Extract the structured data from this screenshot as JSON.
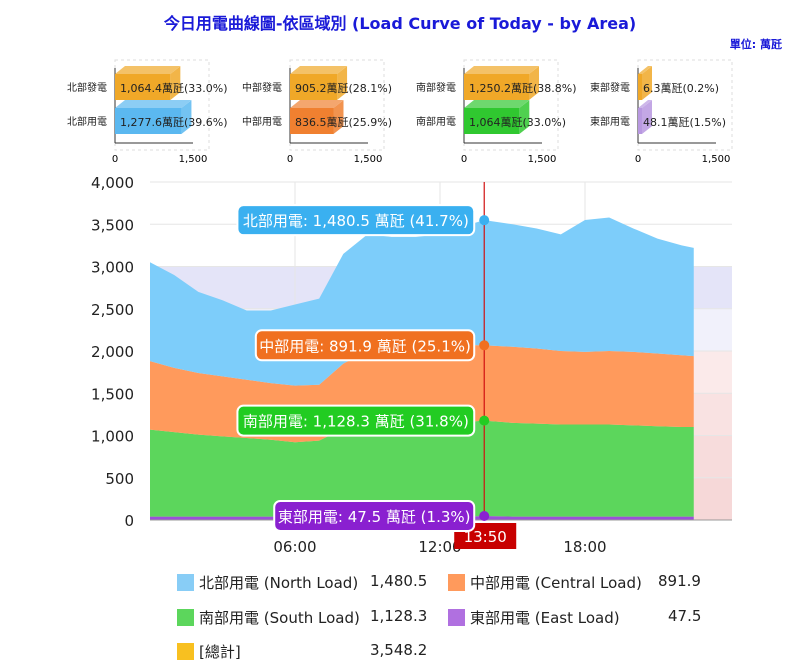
{
  "title": "今日用電曲線圖-依區域別 (Load Curve of Today - by Area)",
  "unit": "單位: 萬瓩",
  "mini_charts": [
    {
      "rows": [
        {
          "label": "北部發電",
          "text": "1,064.4萬瓩(33.0%)",
          "value": 1064.4,
          "color": "#f0a828"
        },
        {
          "label": "北部用電",
          "text": "1,277.6萬瓩(39.6%)",
          "value": 1277.6,
          "color": "#5bb8f0"
        }
      ],
      "ticks": [
        "0",
        "1,500"
      ]
    },
    {
      "rows": [
        {
          "label": "中部發電",
          "text": "905.2萬瓩(28.1%)",
          "value": 905.2,
          "color": "#f0a828"
        },
        {
          "label": "中部用電",
          "text": "836.5萬瓩(25.9%)",
          "value": 836.5,
          "color": "#f08030"
        }
      ],
      "ticks": [
        "0",
        "1,500"
      ]
    },
    {
      "rows": [
        {
          "label": "南部發電",
          "text": "1,250.2萬瓩(38.8%)",
          "value": 1250.2,
          "color": "#f0a828"
        },
        {
          "label": "南部用電",
          "text": "1,064萬瓩(33.0%)",
          "value": 1064,
          "color": "#30c830"
        }
      ],
      "ticks": [
        "0",
        "1,500"
      ]
    },
    {
      "rows": [
        {
          "label": "東部發電",
          "text": "6.3萬瓩(0.2%)",
          "value": 6.3,
          "color": "#f0a828"
        },
        {
          "label": "東部用電",
          "text": "48.1萬瓩(1.5%)",
          "value": 48.1,
          "color": "#b898e0"
        }
      ],
      "ticks": [
        "0",
        "1,500"
      ]
    }
  ],
  "chart_data": {
    "type": "area",
    "stacked": true,
    "xlabel": "",
    "ylabel": "",
    "ylim": [
      0,
      4000
    ],
    "xlim_hours": [
      0,
      24
    ],
    "yticks": [
      "0",
      "500",
      "1,000",
      "1,500",
      "2,000",
      "2,500",
      "3,000",
      "3,500",
      "4,000"
    ],
    "xticks": [
      {
        "h": 6,
        "label": "06:00"
      },
      {
        "h": 12,
        "label": "12:00"
      },
      {
        "h": 18,
        "label": "18:00"
      }
    ],
    "x": [
      0,
      1,
      2,
      3,
      4,
      5,
      6,
      7,
      8,
      9,
      10,
      11,
      12,
      13,
      13.83,
      15,
      16,
      17,
      18,
      19,
      20,
      21,
      22,
      22.5
    ],
    "series": [
      {
        "name": "東部用電",
        "color": "#9a50d8",
        "values": [
          40,
          40,
          40,
          40,
          40,
          40,
          40,
          40,
          40,
          40,
          40,
          40,
          40,
          40,
          47.5,
          40,
          40,
          40,
          40,
          40,
          40,
          40,
          40,
          40
        ]
      },
      {
        "name": "南部用電",
        "color": "#5cd65c",
        "values": [
          1030,
          1000,
          970,
          950,
          930,
          910,
          880,
          900,
          1040,
          1110,
          1110,
          1110,
          1110,
          1120,
          1128.3,
          1110,
          1100,
          1090,
          1090,
          1090,
          1080,
          1070,
          1060,
          1060
        ]
      },
      {
        "name": "中部用電",
        "color": "#ff9a5c",
        "values": [
          810,
          760,
          730,
          710,
          690,
          670,
          670,
          660,
          770,
          850,
          880,
          900,
          910,
          910,
          891.9,
          900,
          890,
          870,
          860,
          870,
          870,
          860,
          850,
          840
        ]
      },
      {
        "name": "北部用電",
        "color": "#7dcdfa",
        "values": [
          1170,
          1100,
          960,
          900,
          820,
          860,
          960,
          1020,
          1300,
          1380,
          1320,
          1300,
          1320,
          1410,
          1480.5,
          1450,
          1420,
          1380,
          1560,
          1580,
          1460,
          1360,
          1300,
          1280
        ]
      }
    ],
    "cursor": {
      "h": 13.83,
      "label": "13:50"
    },
    "tooltips": [
      {
        "text": "北部用電: 1,480.5 萬瓩 (41.7%)",
        "color": "#3ab0f0",
        "y": 3548.2
      },
      {
        "text": "中部用電: 891.9 萬瓩 (25.1%)",
        "color": "#f07020",
        "y": 2067.7
      },
      {
        "text": "南部用電: 1,128.3 萬瓩 (31.8%)",
        "color": "#22cc22",
        "y": 1175.8
      },
      {
        "text": "東部用電: 47.5 萬瓩 (1.3%)",
        "color": "#8a20d0",
        "y": 47.5
      }
    ],
    "legend": [
      {
        "label": "北部用電 (North Load)",
        "value": "1,480.5",
        "color": "#88cdf6"
      },
      {
        "label": "中部用電 (Central Load)",
        "value": "891.9",
        "color": "#ff9a5c"
      },
      {
        "label": "南部用電 (South Load)",
        "value": "1,128.3",
        "color": "#5cd65c"
      },
      {
        "label": "東部用電 (East Load)",
        "value": "47.5",
        "color": "#b070e0"
      },
      {
        "label": "[總計]",
        "value": "3,548.2",
        "color": "#f8c020"
      }
    ]
  }
}
